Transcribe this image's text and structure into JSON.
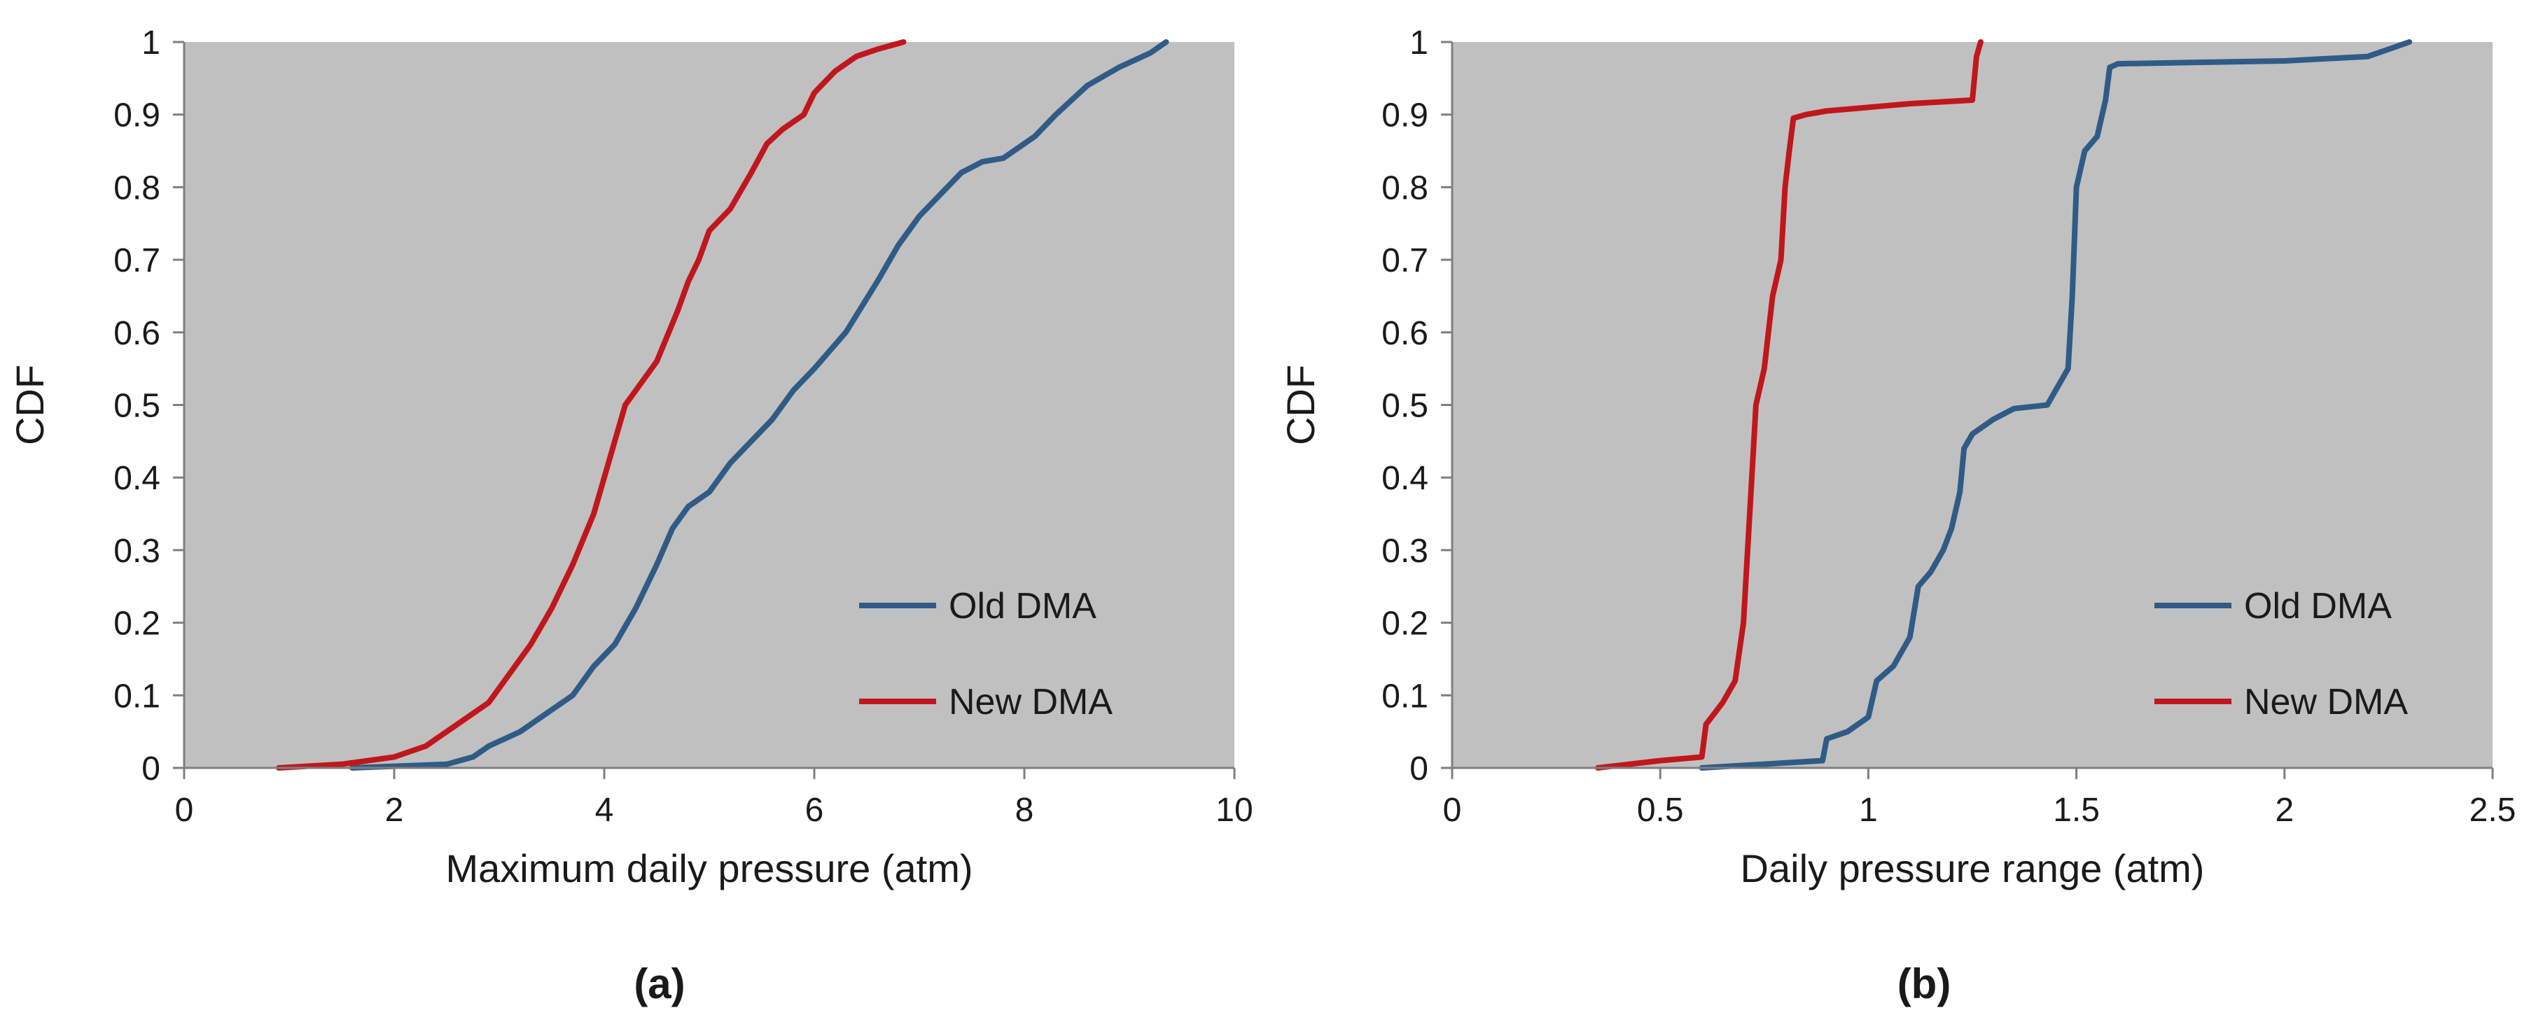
{
  "chart_data": [
    {
      "type": "line",
      "panel_label": "(a)",
      "xlabel": "Maximum daily pressure (atm)",
      "ylabel": "CDF",
      "xlim": [
        0,
        10
      ],
      "ylim": [
        0,
        1
      ],
      "xticks": [
        0,
        2,
        4,
        6,
        8,
        10
      ],
      "yticks": [
        0,
        0.1,
        0.2,
        0.3,
        0.4,
        0.5,
        0.6,
        0.7,
        0.8,
        0.9,
        1
      ],
      "grid": false,
      "plot_background": "#c0c0c0",
      "legend_position": "bottom-right",
      "series": [
        {
          "name": "Old DMA",
          "color": "#2f5b86",
          "x": [
            1.6,
            2.5,
            2.75,
            2.9,
            3.2,
            3.5,
            3.7,
            3.9,
            4.1,
            4.3,
            4.5,
            4.65,
            4.8,
            5.0,
            5.2,
            5.4,
            5.6,
            5.8,
            6.0,
            6.3,
            6.6,
            6.8,
            7.0,
            7.2,
            7.4,
            7.6,
            7.8,
            8.1,
            8.3,
            8.6,
            8.9,
            9.2,
            9.35
          ],
          "y": [
            0,
            0.005,
            0.015,
            0.03,
            0.05,
            0.08,
            0.1,
            0.14,
            0.17,
            0.22,
            0.28,
            0.33,
            0.36,
            0.38,
            0.42,
            0.45,
            0.48,
            0.52,
            0.55,
            0.6,
            0.67,
            0.72,
            0.76,
            0.79,
            0.82,
            0.835,
            0.84,
            0.87,
            0.9,
            0.94,
            0.965,
            0.985,
            1.0
          ]
        },
        {
          "name": "New DMA",
          "color": "#c0171c",
          "x": [
            0.9,
            1.5,
            2.0,
            2.3,
            2.6,
            2.9,
            3.1,
            3.3,
            3.5,
            3.7,
            3.9,
            4.0,
            4.1,
            4.2,
            4.3,
            4.5,
            4.7,
            4.8,
            4.9,
            5.0,
            5.2,
            5.4,
            5.55,
            5.7,
            5.9,
            6.0,
            6.2,
            6.4,
            6.6,
            6.85
          ],
          "y": [
            0,
            0.005,
            0.015,
            0.03,
            0.06,
            0.09,
            0.13,
            0.17,
            0.22,
            0.28,
            0.35,
            0.4,
            0.45,
            0.5,
            0.52,
            0.56,
            0.63,
            0.67,
            0.7,
            0.74,
            0.77,
            0.82,
            0.86,
            0.88,
            0.9,
            0.93,
            0.96,
            0.98,
            0.99,
            1.0
          ]
        }
      ]
    },
    {
      "type": "line",
      "panel_label": "(b)",
      "xlabel": "Daily pressure range (atm)",
      "ylabel": "CDF",
      "xlim": [
        0,
        2.5
      ],
      "ylim": [
        0,
        1
      ],
      "xticks": [
        0,
        0.5,
        1,
        1.5,
        2,
        2.5
      ],
      "yticks": [
        0,
        0.1,
        0.2,
        0.3,
        0.4,
        0.5,
        0.6,
        0.7,
        0.8,
        0.9,
        1
      ],
      "grid": false,
      "plot_background": "#c0c0c0",
      "legend_position": "bottom-right",
      "series": [
        {
          "name": "Old DMA",
          "color": "#2f5b86",
          "x": [
            0.6,
            0.89,
            0.9,
            0.95,
            1.0,
            1.02,
            1.06,
            1.1,
            1.12,
            1.15,
            1.18,
            1.2,
            1.22,
            1.23,
            1.25,
            1.3,
            1.35,
            1.43,
            1.48,
            1.49,
            1.5,
            1.52,
            1.55,
            1.57,
            1.58,
            1.6,
            1.8,
            2.0,
            2.2,
            2.25,
            2.3
          ],
          "y": [
            0,
            0.01,
            0.04,
            0.05,
            0.07,
            0.12,
            0.14,
            0.18,
            0.25,
            0.27,
            0.3,
            0.33,
            0.38,
            0.44,
            0.46,
            0.48,
            0.495,
            0.5,
            0.55,
            0.65,
            0.8,
            0.85,
            0.87,
            0.92,
            0.965,
            0.97,
            0.972,
            0.974,
            0.98,
            0.99,
            1.0
          ]
        },
        {
          "name": "New DMA",
          "color": "#c0171c",
          "x": [
            0.35,
            0.5,
            0.6,
            0.61,
            0.65,
            0.68,
            0.7,
            0.71,
            0.72,
            0.73,
            0.75,
            0.76,
            0.77,
            0.79,
            0.8,
            0.81,
            0.82,
            0.85,
            0.9,
            1.0,
            1.1,
            1.25,
            1.26,
            1.27
          ],
          "y": [
            0,
            0.01,
            0.015,
            0.06,
            0.09,
            0.12,
            0.2,
            0.3,
            0.4,
            0.5,
            0.55,
            0.6,
            0.65,
            0.7,
            0.8,
            0.85,
            0.895,
            0.9,
            0.905,
            0.91,
            0.915,
            0.92,
            0.98,
            1.0
          ]
        }
      ]
    }
  ]
}
